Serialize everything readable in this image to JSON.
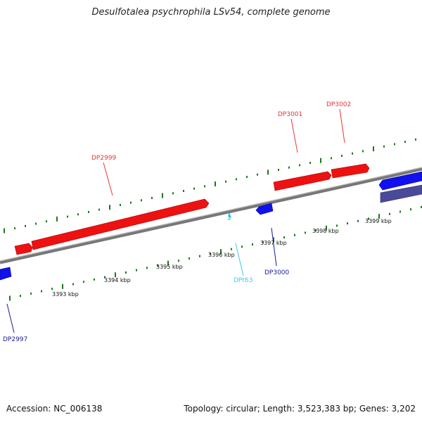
{
  "header": {
    "title": "Desulfotalea psychrophila LSv54, complete genome"
  },
  "footer": {
    "accession": "Accession: NC_006138",
    "summary": "Topology: circular; Length: 3,523,383 bp; Genes: 3,202"
  },
  "colors": {
    "forward_gene": "#ee1111",
    "reverse_gene": "#1111ee",
    "reverse_gene_dark": "#4a4a9a",
    "trna": "#22ccee",
    "tick": "#1a7a1a",
    "backbone": "#888888"
  },
  "scale_labels": [
    "3393 kbp",
    "3394 kbp",
    "3395 kbp",
    "3396 kbp",
    "3397 kbp",
    "3398 kbp",
    "3399 kbp"
  ],
  "gene_labels": [
    {
      "name": "DP2997",
      "strand": "reverse"
    },
    {
      "name": "DP2999",
      "strand": "forward"
    },
    {
      "name": "DP3000",
      "strand": "reverse"
    },
    {
      "name": "DP3001",
      "strand": "forward"
    },
    {
      "name": "DP3002",
      "strand": "forward"
    },
    {
      "name": "DPt63",
      "strand": "trna"
    }
  ]
}
